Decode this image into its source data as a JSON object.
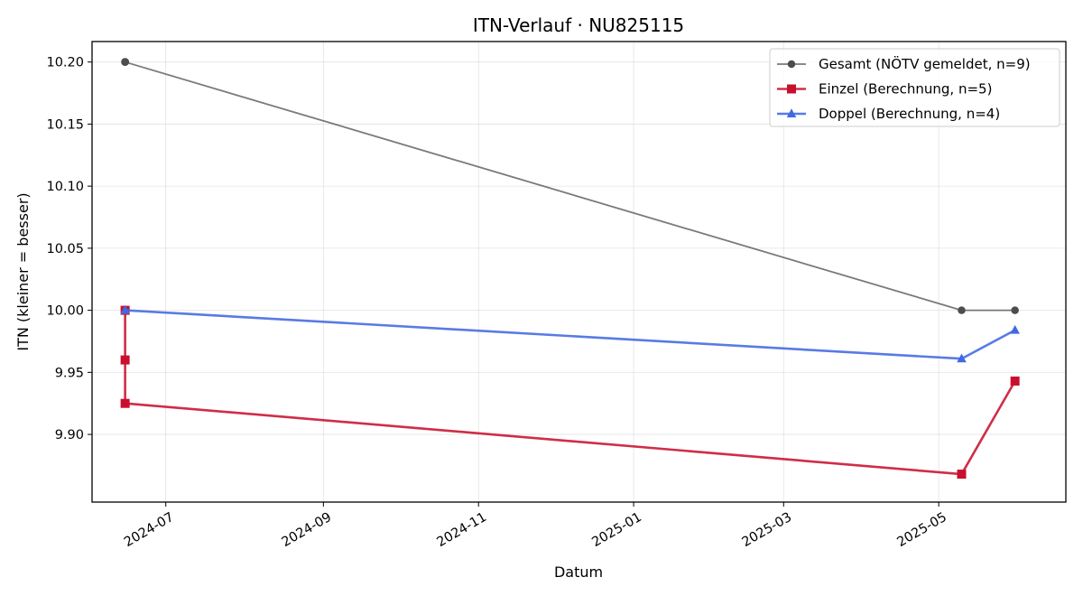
{
  "chart_data": {
    "type": "line",
    "title": "ITN-Verlauf · NU825115",
    "xlabel": "Datum",
    "ylabel": "ITN  (kleiner = besser)",
    "x_type": "date",
    "xlim": [
      "2024-06-02",
      "2025-06-20"
    ],
    "ylim": [
      9.8455,
      10.2165
    ],
    "x_ticks": [
      "2024-07-01",
      "2024-09-01",
      "2024-11-01",
      "2025-01-01",
      "2025-03-01",
      "2025-05-01"
    ],
    "x_tick_labels": [
      "2024-07",
      "2024-09",
      "2024-11",
      "2025-01",
      "2025-03",
      "2025-05"
    ],
    "y_ticks": [
      9.9,
      9.95,
      10.0,
      10.05,
      10.1,
      10.15,
      10.2
    ],
    "y_tick_labels": [
      "9.90",
      "9.95",
      "10.00",
      "10.05",
      "10.10",
      "10.15",
      "10.20"
    ],
    "grid": true,
    "legend_position": "top-right",
    "series": [
      {
        "name": "Gesamt (NÖTV gemeldet, n=9)",
        "color": "#4d4d4d",
        "marker": "circle",
        "points": [
          {
            "x": "2024-06-15",
            "y": 10.2
          },
          {
            "x": "2024-06-15",
            "y": 10.2
          },
          {
            "x": "2024-06-15",
            "y": 10.2
          },
          {
            "x": "2024-06-15",
            "y": 10.2
          },
          {
            "x": "2024-06-15",
            "y": 10.2
          },
          {
            "x": "2024-06-15",
            "y": 10.2
          },
          {
            "x": "2024-06-15",
            "y": 10.2
          },
          {
            "x": "2025-05-10",
            "y": 10.0
          },
          {
            "x": "2025-05-31",
            "y": 10.0
          }
        ]
      },
      {
        "name": "Einzel (Berechnung, n=5)",
        "color": "#c8102e",
        "marker": "square",
        "points": [
          {
            "x": "2024-06-15",
            "y": 10.0
          },
          {
            "x": "2024-06-15",
            "y": 9.96
          },
          {
            "x": "2024-06-15",
            "y": 9.925
          },
          {
            "x": "2025-05-10",
            "y": 9.868
          },
          {
            "x": "2025-05-31",
            "y": 9.943
          }
        ]
      },
      {
        "name": "Doppel (Berechnung, n=4)",
        "color": "#4169e1",
        "marker": "triangle",
        "points": [
          {
            "x": "2024-06-15",
            "y": 10.0
          },
          {
            "x": "2024-06-15",
            "y": 10.0
          },
          {
            "x": "2025-05-10",
            "y": 9.961
          },
          {
            "x": "2025-05-31",
            "y": 9.984
          }
        ]
      }
    ]
  }
}
